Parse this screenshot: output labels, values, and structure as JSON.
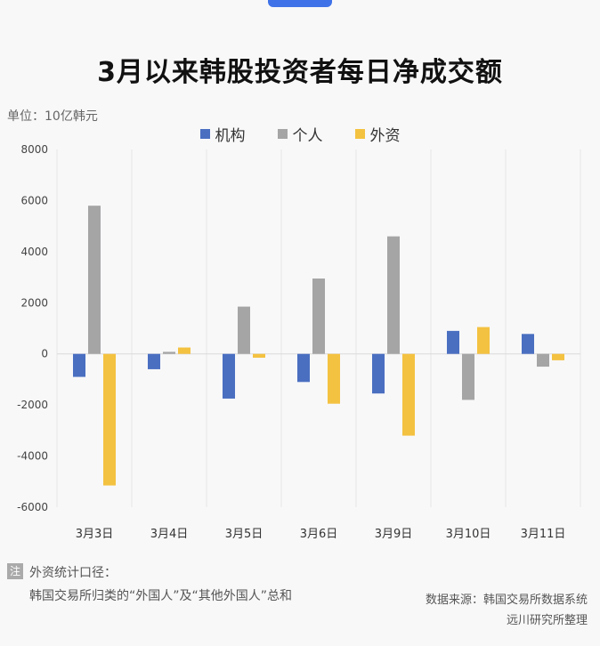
{
  "title": "3月以来韩股投资者每日净成交额",
  "unit_label": "单位：10亿韩元",
  "note": {
    "badge": "注",
    "title": "外资统计口径：",
    "body": "韩国交易所归类的“外国人”及“其他外国人”总和"
  },
  "source": {
    "line1": "数据来源：韩国交易所数据系统",
    "line2": "远川研究所整理"
  },
  "chart_data": {
    "type": "bar",
    "categories": [
      "3月3日",
      "3月4日",
      "3月5日",
      "3月6日",
      "3月9日",
      "3月10日",
      "3月11日"
    ],
    "series": [
      {
        "name": "机构",
        "color": "#4a6fc1",
        "values": [
          -900,
          -600,
          -1750,
          -1100,
          -1550,
          900,
          780
        ]
      },
      {
        "name": "个人",
        "color": "#a5a5a5",
        "values": [
          5800,
          80,
          1850,
          2950,
          4600,
          -1800,
          -500
        ]
      },
      {
        "name": "外资",
        "color": "#f4c241",
        "values": [
          -5150,
          250,
          -150,
          -1950,
          -3200,
          1050,
          -250
        ]
      }
    ],
    "yticks": [
      8000,
      6000,
      4000,
      2000,
      0,
      -2000,
      -4000,
      -6000
    ],
    "ylim": [
      -6000,
      8000
    ],
    "legend_position": "top-center",
    "grid": "vertical"
  }
}
